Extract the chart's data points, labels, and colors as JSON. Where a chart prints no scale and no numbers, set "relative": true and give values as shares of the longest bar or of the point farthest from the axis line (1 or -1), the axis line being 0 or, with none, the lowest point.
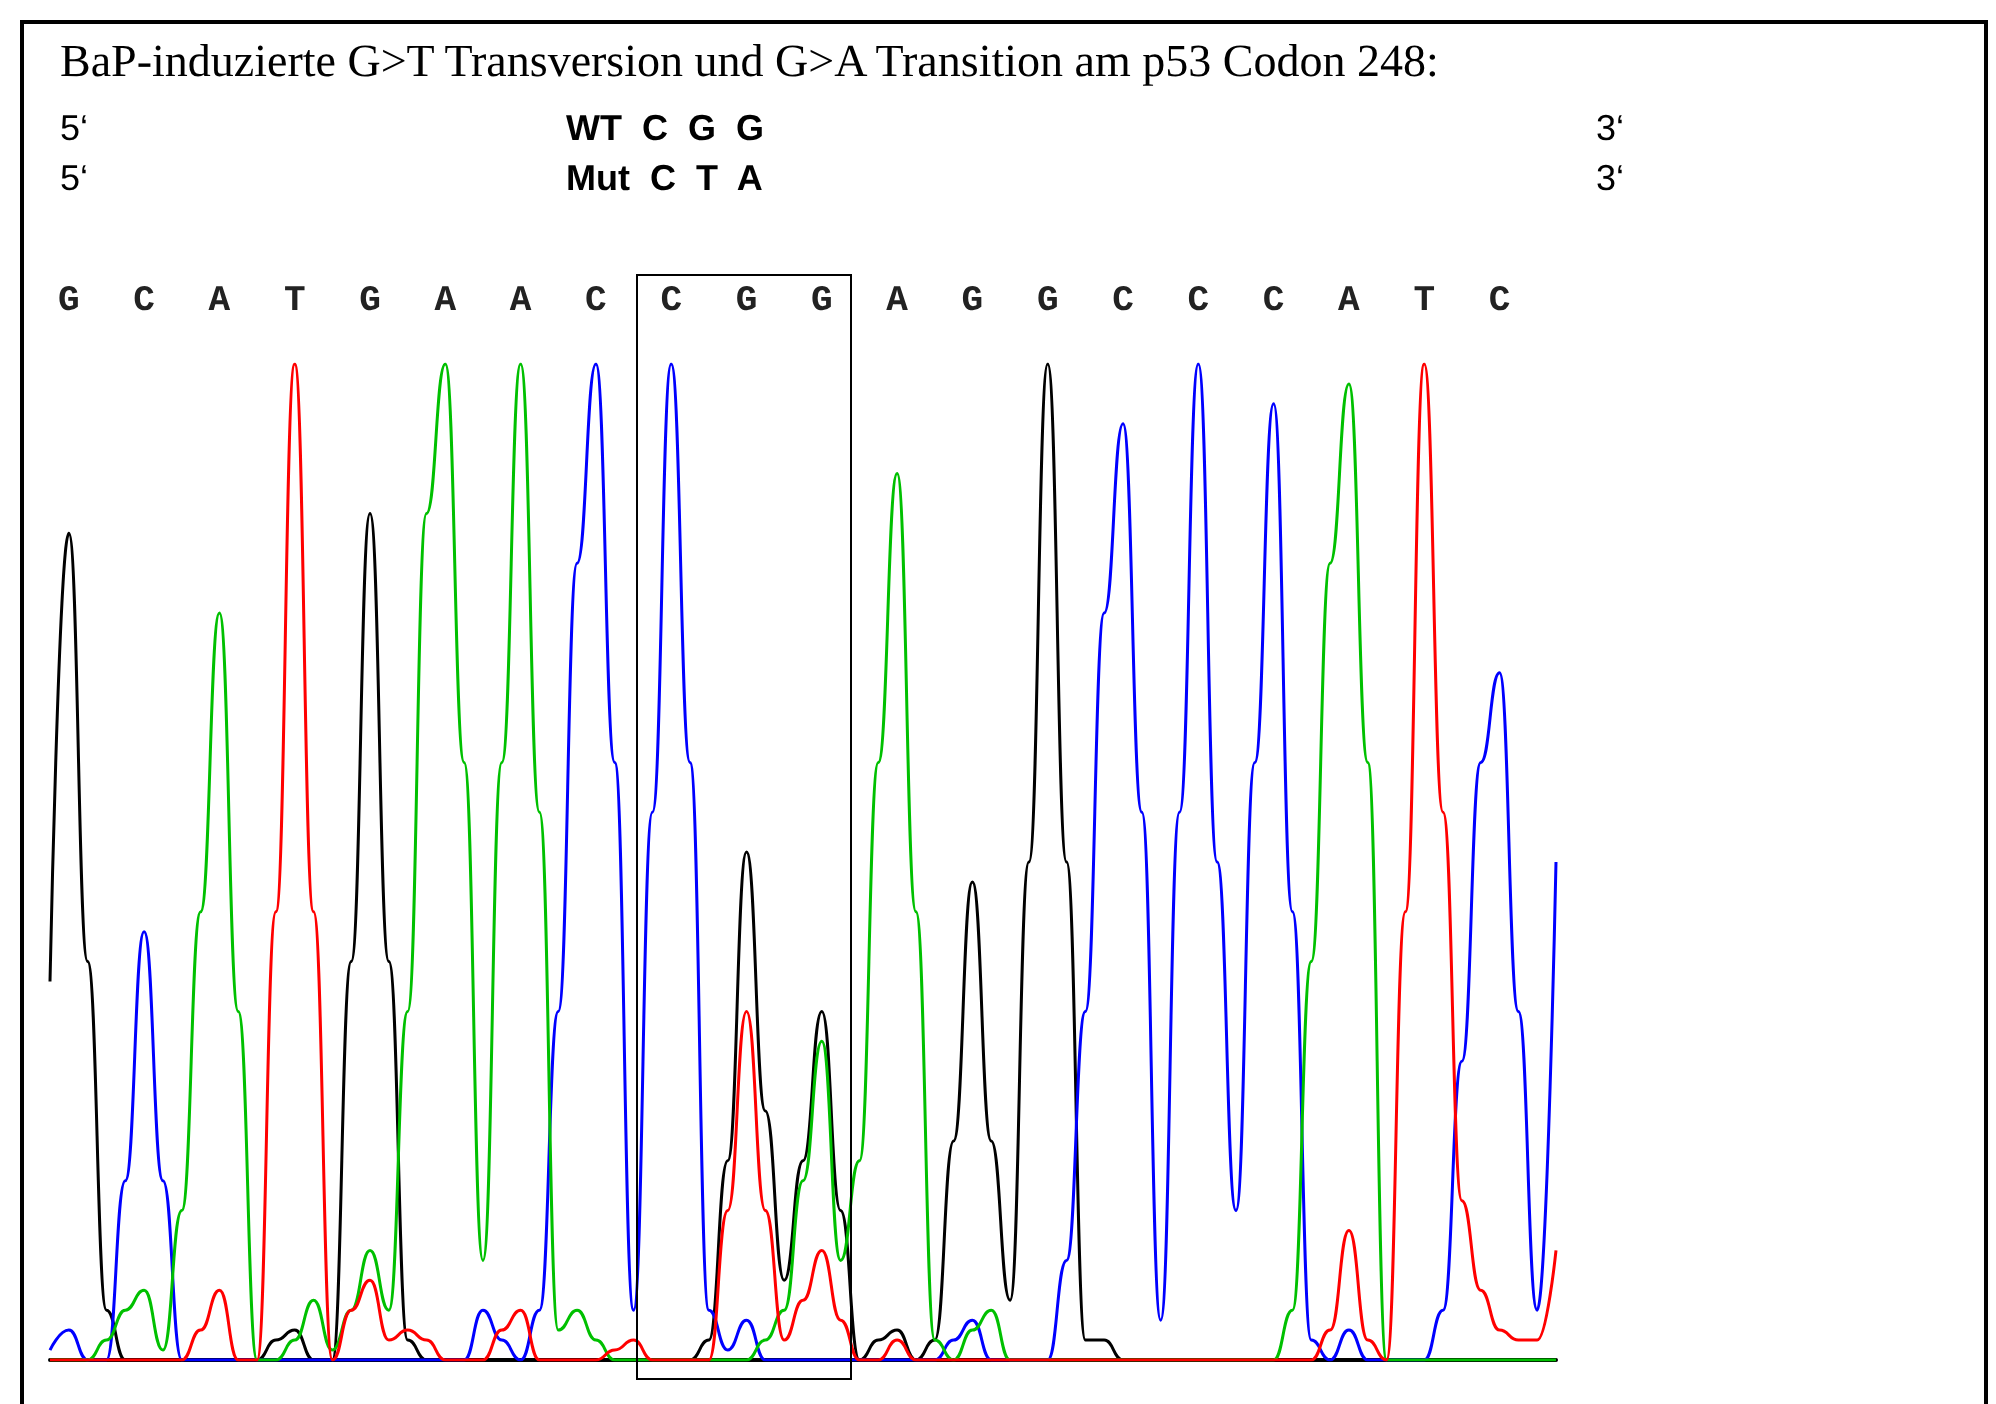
{
  "chart_data": {
    "type": "line",
    "relative": true,
    "title": "BaP-induzierte G>T Transversion und G>A Transition am p53 Codon 248:",
    "annotations": [
      "5‘",
      "WT  C  G  G",
      "3‘",
      "5‘",
      "Mut  C  T  A",
      "3‘"
    ],
    "categories": [
      null,
      "G",
      null,
      null,
      null,
      "C",
      null,
      null,
      null,
      "A",
      null,
      null,
      null,
      "T",
      null,
      null,
      null,
      "G",
      null,
      null,
      null,
      "A",
      null,
      null,
      null,
      "A",
      null,
      null,
      null,
      "C",
      null,
      null,
      null,
      "C",
      null,
      null,
      null,
      "G",
      null,
      null,
      null,
      "G",
      null,
      null,
      null,
      "A",
      null,
      null,
      null,
      "G",
      null,
      null,
      null,
      "G",
      null,
      null,
      null,
      "C",
      null,
      null,
      null,
      "C",
      null,
      null,
      null,
      "C",
      null,
      null,
      null,
      "A",
      null,
      null,
      null,
      "T",
      null,
      null,
      null,
      "C",
      null,
      null,
      null
    ],
    "grid": false,
    "marker": "none",
    "line_style": "solid",
    "series": [
      {
        "color": "#000000",
        "values": [
          0.38,
          0.83,
          0.4,
          0.05,
          0,
          0,
          0,
          0,
          0,
          0,
          0,
          0,
          0.02,
          0.03,
          0,
          0,
          0.4,
          0.85,
          0.4,
          0.02,
          0,
          0,
          0,
          0,
          0,
          0,
          0,
          0,
          0,
          0,
          0,
          0,
          0,
          0,
          0,
          0.02,
          0.2,
          0.51,
          0.25,
          0.08,
          0.2,
          0.35,
          0.15,
          0,
          0.02,
          0.03,
          0,
          0.02,
          0.22,
          0.48,
          0.22,
          0.06,
          0.5,
          1,
          0.5,
          0.02,
          0.02,
          0,
          0,
          0,
          0,
          0,
          0,
          0,
          0,
          0,
          0,
          0,
          0,
          0,
          0,
          0,
          0,
          0,
          0,
          0,
          0,
          0,
          0,
          0,
          0
        ]
      },
      {
        "color": "#0000ff",
        "values": [
          0.01,
          0.03,
          0,
          0,
          0.18,
          0.43,
          0.18,
          0,
          0,
          0,
          0,
          0,
          0,
          0,
          0,
          0,
          0,
          0,
          0,
          0,
          0,
          0,
          0,
          0.05,
          0.02,
          0,
          0.05,
          0.35,
          0.8,
          1,
          0.6,
          0.05,
          0.55,
          1,
          0.6,
          0.05,
          0.01,
          0.04,
          0,
          0,
          0,
          0,
          0,
          0,
          0,
          0,
          0,
          0,
          0.02,
          0.04,
          0,
          0,
          0,
          0,
          0.1,
          0.35,
          0.75,
          0.94,
          0.55,
          0.04,
          0.55,
          1,
          0.5,
          0.15,
          0.6,
          0.96,
          0.45,
          0.02,
          0,
          0.03,
          0,
          0,
          0,
          0,
          0.05,
          0.3,
          0.6,
          0.69,
          0.35,
          0.05,
          0.5
        ]
      },
      {
        "color": "#00c000",
        "values": [
          0,
          0,
          0,
          0.02,
          0.05,
          0.07,
          0.01,
          0.15,
          0.45,
          0.75,
          0.35,
          0,
          0,
          0.02,
          0.06,
          0.01,
          0.05,
          0.11,
          0.05,
          0.35,
          0.85,
          1,
          0.6,
          0.1,
          0.6,
          1,
          0.55,
          0.03,
          0.05,
          0.02,
          0,
          0,
          0,
          0,
          0,
          0,
          0,
          0,
          0.02,
          0.05,
          0.18,
          0.32,
          0.1,
          0.2,
          0.6,
          0.89,
          0.45,
          0.02,
          0,
          0.03,
          0.05,
          0,
          0,
          0,
          0,
          0,
          0,
          0,
          0,
          0,
          0,
          0,
          0,
          0,
          0,
          0,
          0.05,
          0.4,
          0.8,
          0.98,
          0.6,
          0,
          0,
          0,
          0,
          0,
          0,
          0,
          0,
          0,
          0
        ]
      },
      {
        "color": "#ff0000",
        "values": [
          0,
          0,
          0,
          0,
          0,
          0,
          0,
          0,
          0.03,
          0.07,
          0,
          0,
          0.45,
          1,
          0.45,
          0,
          0.05,
          0.08,
          0.02,
          0.03,
          0.02,
          0,
          0,
          0,
          0.03,
          0.05,
          0,
          0,
          0,
          0,
          0.01,
          0.02,
          0,
          0,
          0,
          0,
          0.15,
          0.35,
          0.15,
          0.02,
          0.06,
          0.11,
          0.04,
          0,
          0,
          0.02,
          0,
          0,
          0,
          0,
          0,
          0,
          0,
          0,
          0,
          0,
          0,
          0,
          0,
          0,
          0,
          0,
          0,
          0,
          0,
          0,
          0,
          0,
          0.03,
          0.13,
          0.02,
          0,
          0.45,
          1,
          0.55,
          0.16,
          0.07,
          0.03,
          0.02,
          0.02,
          0.11
        ]
      }
    ]
  }
}
